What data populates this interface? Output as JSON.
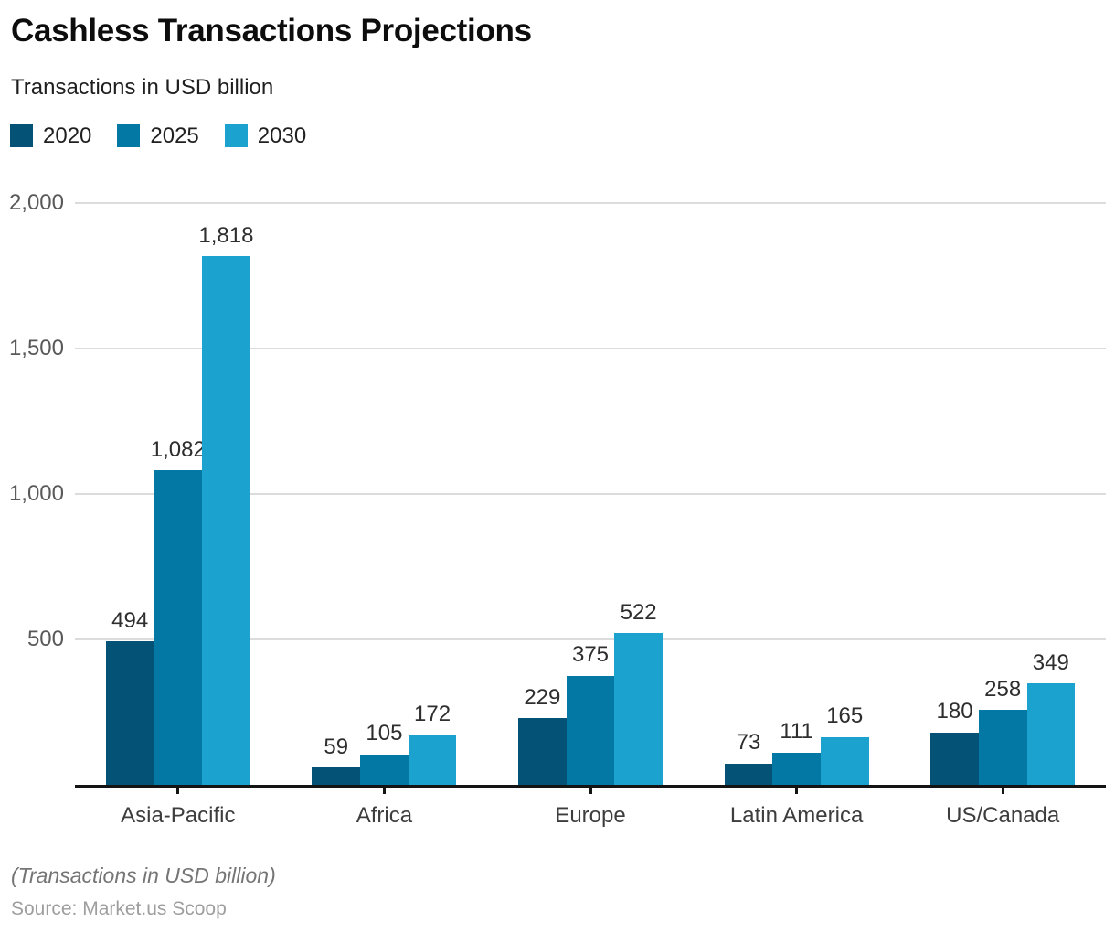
{
  "header": {
    "title": "Cashless Transactions Projections",
    "subtitle": "Transactions in USD billion"
  },
  "footer": {
    "note": "(Transactions in USD billion)",
    "source": "Source: Market.us Scoop"
  },
  "colors": {
    "series_2020": "#045377",
    "series_2025": "#0478a5",
    "series_2030": "#1ba2ce",
    "gridline": "#dcdcdc",
    "axis": "#141414",
    "tick_label": "#595959",
    "category_label": "#3d3d3d",
    "value_label": "#2e2e2e"
  },
  "chart_data": {
    "type": "bar",
    "title": "Cashless Transactions Projections",
    "subtitle": "Transactions in USD billion",
    "xlabel": "",
    "ylabel": "",
    "categories": [
      "Asia-Pacific",
      "Africa",
      "Europe",
      "Latin America",
      "US/Canada"
    ],
    "series": [
      {
        "name": "2020",
        "color": "#045377",
        "values": [
          494,
          59,
          229,
          73,
          180
        ]
      },
      {
        "name": "2025",
        "color": "#0478a5",
        "values": [
          1082,
          105,
          375,
          111,
          258
        ]
      },
      {
        "name": "2030",
        "color": "#1ba2ce",
        "values": [
          1818,
          172,
          522,
          165,
          349
        ]
      }
    ],
    "value_labels": true,
    "ylim": [
      0,
      2000
    ],
    "y_ticks": [
      500,
      1000,
      1500,
      2000
    ],
    "grid": true,
    "legend_position": "top-left"
  }
}
